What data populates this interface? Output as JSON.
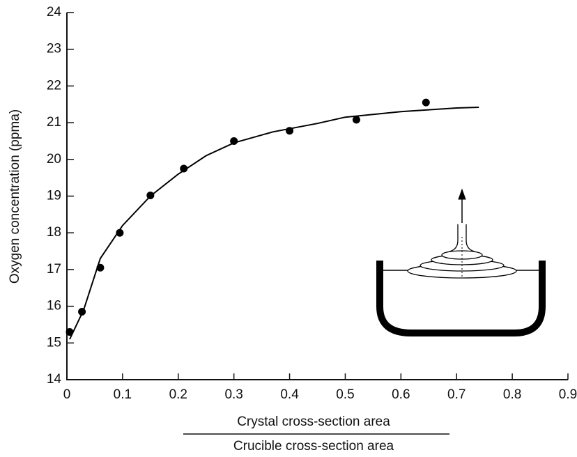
{
  "chart_data": {
    "type": "scatter",
    "ylabel": "Oxygen concentration (ppma)",
    "xlabel_numerator": "Crystal cross-section area",
    "xlabel_denominator": "Crucible cross-section area",
    "xlim": [
      0,
      0.9
    ],
    "xticks": [
      0,
      0.1,
      0.2,
      0.3,
      0.4,
      0.5,
      0.6,
      0.7,
      0.8,
      0.9
    ],
    "ylim": [
      14,
      24
    ],
    "yticks": [
      14,
      15,
      16,
      17,
      18,
      19,
      20,
      21,
      22,
      23,
      24
    ],
    "series": [
      {
        "mode": "markers",
        "color": "#000000",
        "x": [
          0.005,
          0.027,
          0.06,
          0.095,
          0.15,
          0.21,
          0.3,
          0.4,
          0.52,
          0.645
        ],
        "values": [
          15.3,
          15.85,
          17.05,
          18.0,
          19.02,
          19.75,
          20.5,
          20.78,
          21.08,
          21.55
        ]
      },
      {
        "mode": "line",
        "color": "#000000",
        "x": [
          0.005,
          0.03,
          0.06,
          0.1,
          0.15,
          0.2,
          0.25,
          0.3,
          0.37,
          0.45,
          0.5,
          0.6,
          0.7,
          0.74
        ],
        "values": [
          15.1,
          15.9,
          17.3,
          18.2,
          19.0,
          19.6,
          20.1,
          20.45,
          20.75,
          20.98,
          21.15,
          21.3,
          21.4,
          21.42
        ]
      }
    ]
  }
}
